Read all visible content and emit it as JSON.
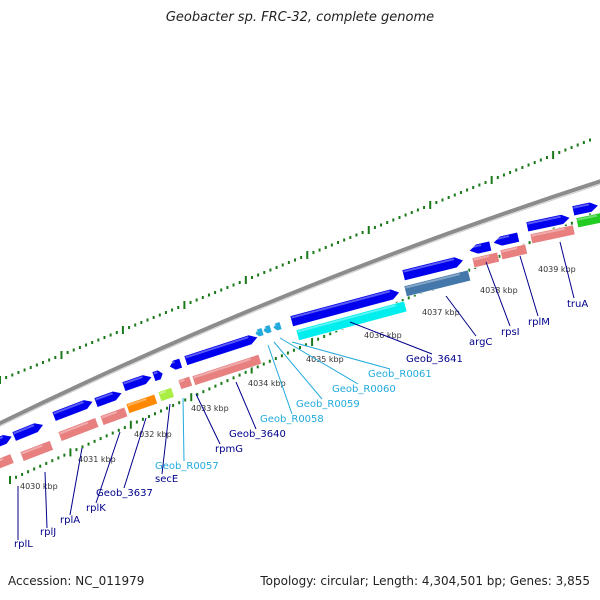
{
  "title": "Geobacter sp. FRC-32, complete genome",
  "footer": {
    "accession": "Accession: NC_011979",
    "summary": "Topology: circular; Length: 4,304,501 bp; Genes: 3,855"
  },
  "colors": {
    "backbone": "#8c8c8c",
    "cds": "#0000ee",
    "rna": "#00e5ee",
    "rrna_like": "#e88080",
    "trna": "#5599ee",
    "tick": "#1a7a1a",
    "label_protein": "#00008b",
    "label_rna": "#22aadd",
    "orange": "#ff8800",
    "light_green": "#aaee44",
    "green": "#22cc22",
    "steel": "#4477aa"
  },
  "scale_labels": [
    "4030 kbp",
    "4031 kbp",
    "4032 kbp",
    "4033 kbp",
    "4034 kbp",
    "4035 kbp",
    "4036 kbp",
    "4037 kbp",
    "4038 kbp",
    "4039 kbp"
  ],
  "gene_labels": [
    {
      "text": "rplL",
      "kind": "protein"
    },
    {
      "text": "rplJ",
      "kind": "protein"
    },
    {
      "text": "rplA",
      "kind": "protein"
    },
    {
      "text": "rplK",
      "kind": "protein"
    },
    {
      "text": "Geob_3637",
      "kind": "protein"
    },
    {
      "text": "secE",
      "kind": "protein"
    },
    {
      "text": "Geob_R0057",
      "kind": "rna"
    },
    {
      "text": "rpmG",
      "kind": "protein"
    },
    {
      "text": "Geob_3640",
      "kind": "protein"
    },
    {
      "text": "Geob_R0058",
      "kind": "rna"
    },
    {
      "text": "Geob_R0059",
      "kind": "rna"
    },
    {
      "text": "Geob_R0060",
      "kind": "rna"
    },
    {
      "text": "Geob_R0061",
      "kind": "rna"
    },
    {
      "text": "Geob_3641",
      "kind": "protein"
    },
    {
      "text": "argC",
      "kind": "protein"
    },
    {
      "text": "rpsI",
      "kind": "protein"
    },
    {
      "text": "rplM",
      "kind": "protein"
    },
    {
      "text": "truA",
      "kind": "protein"
    }
  ]
}
